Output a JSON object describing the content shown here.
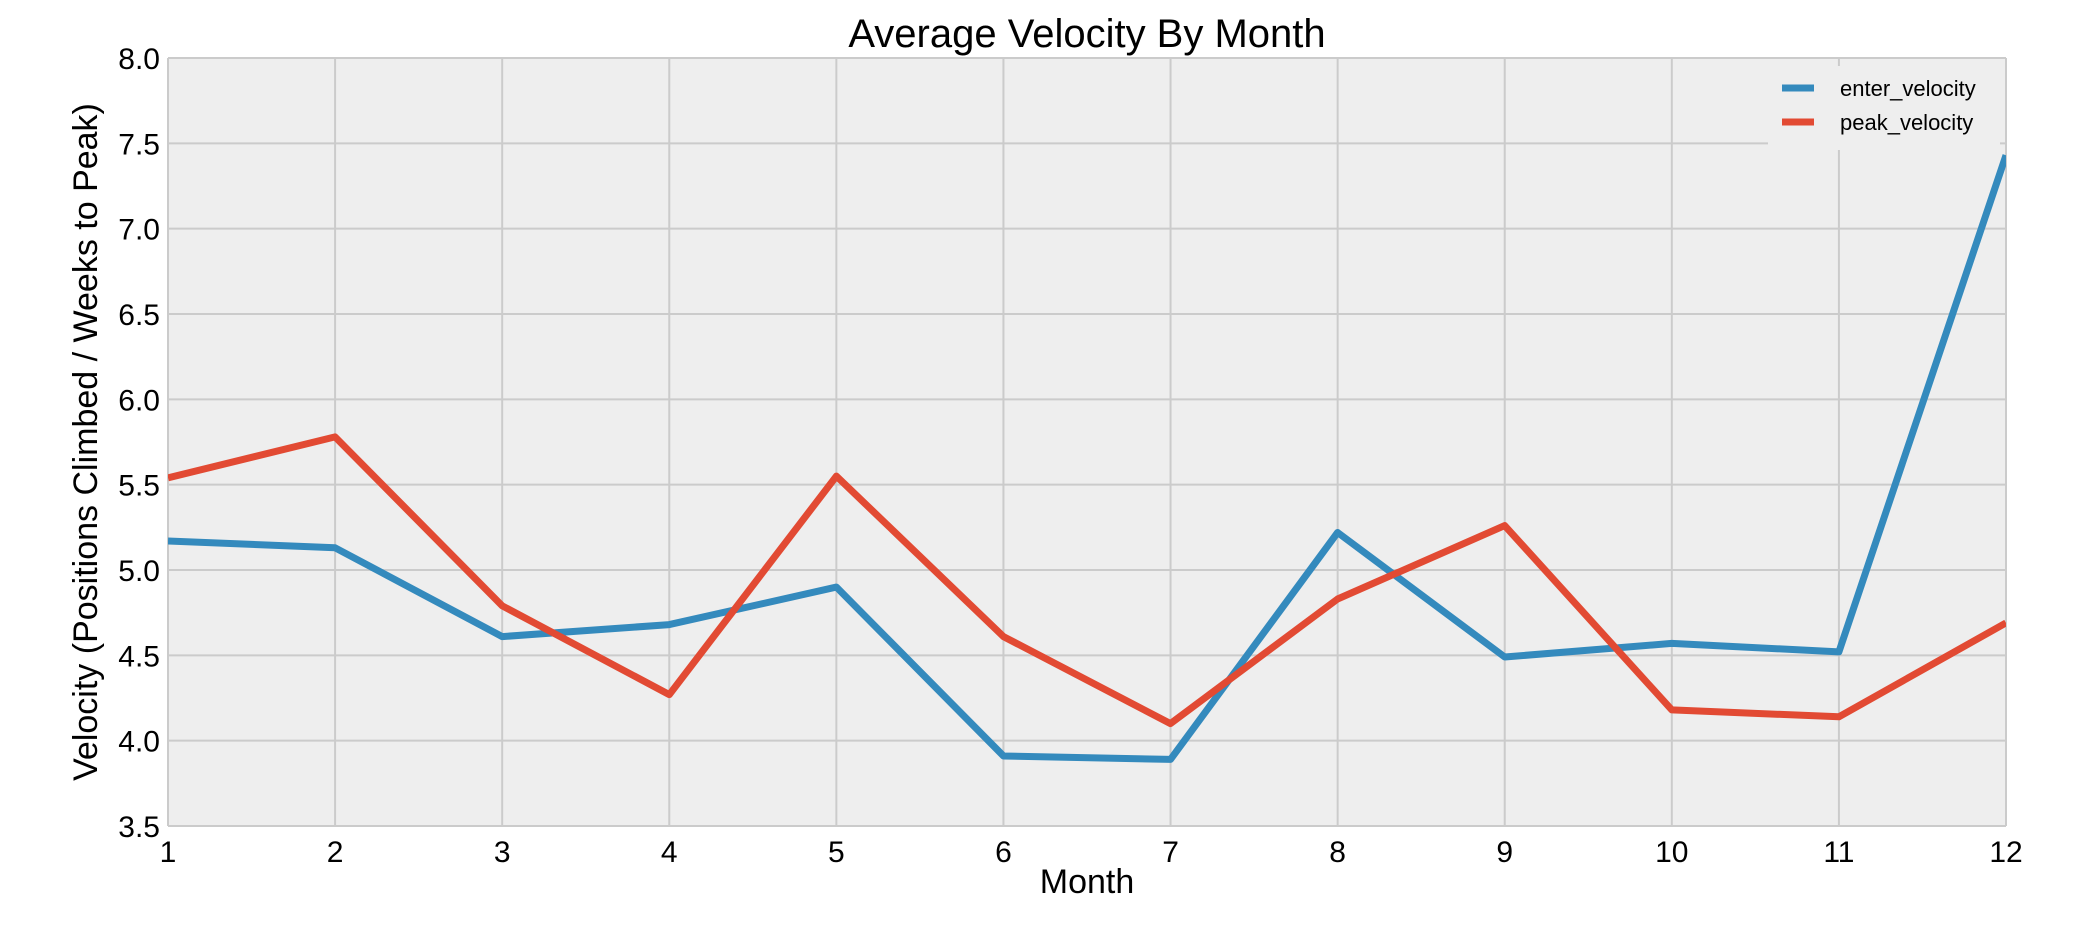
{
  "chart_data": {
    "type": "line",
    "title": "Average Velocity By Month",
    "xlabel": "Month",
    "ylabel": "Velocity (Positions Climbed / Weeks to Peak)",
    "x": [
      1,
      2,
      3,
      4,
      5,
      6,
      7,
      8,
      9,
      10,
      11,
      12
    ],
    "x_tick_labels": [
      "1",
      "2",
      "3",
      "4",
      "5",
      "6",
      "7",
      "8",
      "9",
      "10",
      "11",
      "12"
    ],
    "y_tick_labels": [
      "3.5",
      "4.0",
      "4.5",
      "5.0",
      "5.5",
      "6.0",
      "6.5",
      "7.0",
      "7.5",
      "8.0"
    ],
    "xlim": [
      1,
      12
    ],
    "ylim": [
      3.5,
      8.0
    ],
    "grid": true,
    "legend_position": "top-right",
    "series": [
      {
        "name": "enter_velocity",
        "color": "#348ABD",
        "values": [
          5.17,
          5.13,
          4.61,
          4.68,
          4.9,
          3.91,
          3.89,
          5.22,
          4.49,
          4.57,
          4.52,
          7.43
        ]
      },
      {
        "name": "peak_velocity",
        "color": "#E24A33",
        "values": [
          5.54,
          5.78,
          4.79,
          4.27,
          5.55,
          4.61,
          4.1,
          4.83,
          5.26,
          4.18,
          4.14,
          4.69
        ]
      }
    ],
    "plot_background": "#EEEEEE",
    "grid_color": "#CBCBCB"
  }
}
